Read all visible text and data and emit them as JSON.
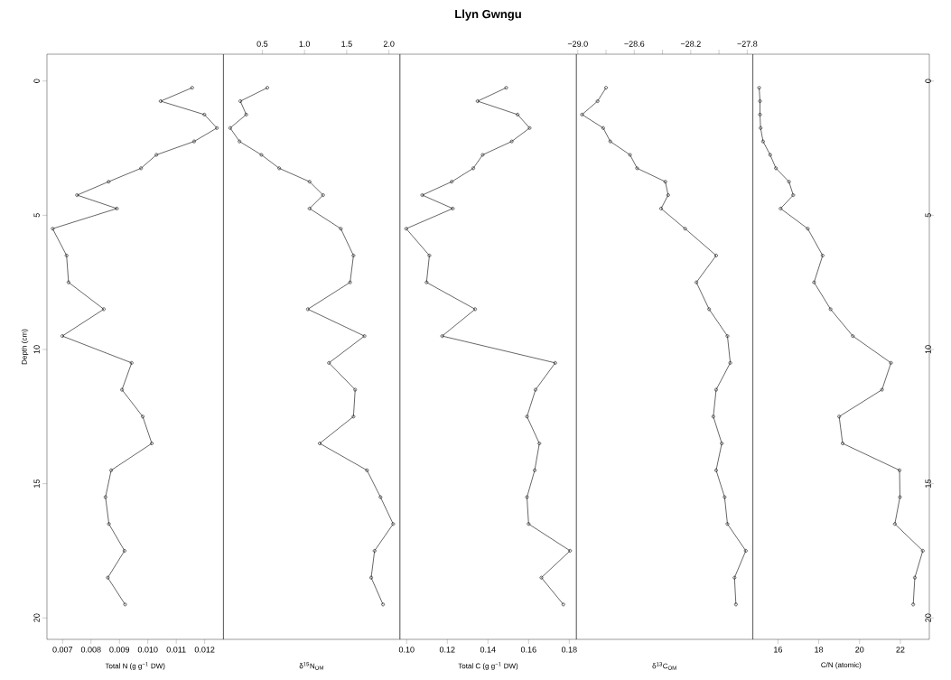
{
  "chart_data": [
    {
      "type": "line",
      "orientation": "horizontal",
      "xlabel": "Total N (g g$^{−1}$ DW)",
      "ylabel": "Depth (cm)",
      "color": "#000000",
      "marker": "circle",
      "line_style": "solid",
      "grid": false,
      "x": [
        0.25,
        0.75,
        1.25,
        1.75,
        2.25,
        2.75,
        3.25,
        3.75,
        4.25,
        4.75,
        5.5,
        6.5,
        7.5,
        8.5,
        9.5,
        10.5,
        11.5,
        12.5,
        13.5,
        14.5,
        15.5,
        16.5,
        17.5,
        18.5,
        19.5
      ],
      "values": [
        0.01156,
        0.01045,
        0.01199,
        0.01243,
        0.01163,
        0.0103,
        0.00976,
        0.00862,
        0.00751,
        0.00891,
        0.00665,
        0.00714,
        0.00721,
        0.00845,
        0.00699,
        0.00943,
        0.00909,
        0.00982,
        0.01014,
        0.00871,
        0.00851,
        0.00863,
        0.00918,
        0.00859,
        0.0092
      ],
      "xlim": [
        0.00645,
        0.01266
      ],
      "xticks": [
        0.007,
        0.008,
        0.009,
        {
          "value": 0.01,
          "label": "0.010"
        },
        0.011,
        0.012
      ],
      "ylim": [
        20.8,
        -1.0
      ],
      "yticks": [
        0,
        5,
        10,
        15,
        20
      ]
    },
    {
      "type": "line",
      "orientation": "horizontal",
      "xlabel": "δ$^{15}$N$_{OM}$",
      "marker": "circle",
      "line_style": "solid",
      "grid": false,
      "tick_labels": "x",
      "x": [
        0.25,
        0.75,
        1.25,
        1.75,
        2.25,
        2.75,
        3.25,
        3.75,
        4.25,
        4.75,
        5.5,
        6.5,
        7.5,
        8.5,
        9.5,
        10.5,
        11.5,
        12.5,
        13.5,
        14.5,
        15.5,
        16.5,
        17.5,
        18.5,
        19.5
      ],
      "series": [
        {
          "color": "#000000",
          "axis": "x2",
          "values": [
            0.56,
            0.24,
            0.31,
            0.12,
            0.23,
            0.49,
            0.7,
            1.06,
            1.22,
            1.06,
            1.43,
            1.58,
            1.54,
            1.04,
            1.71,
            1.29,
            1.6,
            1.58,
            1.18,
            1.74,
            1.9,
            2.05,
            1.83,
            1.79,
            1.93
          ]
        }
      ],
      "x2lim": [
        0.04,
        2.13
      ],
      "x2ticks": [
        0.5,
        {
          "value": 1,
          "label": "1.0"
        },
        1.5,
        {
          "value": 2,
          "label": "2.0"
        }
      ],
      "ylim": [
        20.8,
        -1.0
      ]
    },
    {
      "type": "line",
      "orientation": "horizontal",
      "title": "Llyn Gwngu",
      "xlabel": "Total C (g g$^{−1}$ DW)",
      "color": "#000000",
      "marker": "circle",
      "line_style": "solid",
      "grid": false,
      "tick_labels": "x",
      "x": [
        0.25,
        0.75,
        1.25,
        1.75,
        2.25,
        2.75,
        3.25,
        3.75,
        4.25,
        4.75,
        5.5,
        6.5,
        7.5,
        8.5,
        9.5,
        10.5,
        11.5,
        12.5,
        13.5,
        14.5,
        15.5,
        16.5,
        17.5,
        18.5,
        19.5
      ],
      "values": [
        0.149,
        0.1349,
        0.1546,
        0.1605,
        0.1517,
        0.1374,
        0.1328,
        0.1222,
        0.1077,
        0.1227,
        0.0998,
        0.1112,
        0.1098,
        0.1337,
        0.1175,
        0.1731,
        0.1634,
        0.1592,
        0.1653,
        0.163,
        0.1592,
        0.16,
        0.1804,
        0.1663,
        0.1771
      ],
      "xlim": [
        0.0967,
        0.1835
      ],
      "xticks": [
        {
          "value": 0.1,
          "label": "0.10"
        },
        {
          "value": 0.12,
          "label": "0.12"
        },
        {
          "value": 0.14,
          "label": "0.14"
        },
        {
          "value": 0.16,
          "label": "0.16"
        },
        {
          "value": 0.18,
          "label": "0.18"
        }
      ],
      "ylim": [
        20.8,
        -1.0
      ]
    },
    {
      "type": "line",
      "orientation": "horizontal",
      "xlabel": "δ$^{13}$C$_{OM}$",
      "marker": "circle",
      "line_style": "solid",
      "grid": false,
      "tick_labels": "x",
      "x": [
        0.25,
        0.75,
        1.25,
        1.75,
        2.25,
        2.75,
        3.25,
        3.75,
        4.25,
        4.75,
        5.5,
        6.5,
        7.5,
        8.5,
        9.5,
        10.5,
        11.5,
        12.5,
        13.5,
        14.5,
        15.5,
        16.5,
        17.5,
        18.5,
        19.5
      ],
      "series": [
        {
          "color": "#000000",
          "axis": "x2",
          "values": [
            -28.8,
            -28.86,
            -28.97,
            -28.82,
            -28.77,
            -28.63,
            -28.58,
            -28.38,
            -28.36,
            -28.41,
            -28.24,
            -28.02,
            -28.16,
            -28.07,
            -27.94,
            -27.92,
            -28.02,
            -28.04,
            -27.98,
            -28.02,
            -27.96,
            -27.94,
            -27.81,
            -27.89,
            -27.88
          ]
        }
      ],
      "x2lim": [
        -29.01,
        -27.76
      ],
      "x2ticks": [
        {
          "value": -29.0,
          "label": "−29.0"
        },
        {
          "value": -28.8,
          "label": null
        },
        {
          "value": -28.6,
          "label": "−28.6"
        },
        {
          "value": -28.4,
          "label": null
        },
        {
          "value": -28.2,
          "label": "−28.2"
        },
        {
          "value": -28.0,
          "label": null
        },
        {
          "value": -27.8,
          "label": "−27.8"
        }
      ],
      "ylim": [
        20.8,
        -1.0
      ]
    },
    {
      "type": "line",
      "orientation": "horizontal",
      "xlabel": "C/N (atomic)",
      "color": "#000000",
      "marker": "circle",
      "line_style": "solid",
      "grid": false,
      "x": [
        0.25,
        0.75,
        1.25,
        1.75,
        2.25,
        2.75,
        3.25,
        3.75,
        4.25,
        4.75,
        5.5,
        6.5,
        7.5,
        8.5,
        9.5,
        10.5,
        11.5,
        12.5,
        13.5,
        14.5,
        15.5,
        16.5,
        17.5,
        18.5,
        19.5
      ],
      "values": [
        15.08,
        15.12,
        15.12,
        15.15,
        15.27,
        15.62,
        15.9,
        16.54,
        16.75,
        16.13,
        17.46,
        18.19,
        17.77,
        18.58,
        19.67,
        21.54,
        21.1,
        19.0,
        19.17,
        21.96,
        21.98,
        21.73,
        23.1,
        22.71,
        22.63
      ],
      "xlim": [
        14.77,
        23.42
      ],
      "xticks": [
        16,
        18,
        20,
        22
      ],
      "ylim": [
        20.8,
        -1.0
      ],
      "yticks": [
        0,
        5,
        10,
        15,
        20
      ]
    }
  ]
}
